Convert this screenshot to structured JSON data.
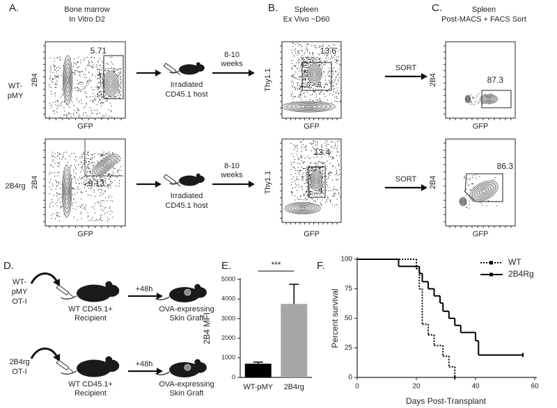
{
  "flow": {
    "columns": [
      {
        "label": "A.",
        "title": "Bone marrow",
        "subtitle": "In Vitro D2",
        "x_label": "GFP",
        "y_label": "2B4"
      },
      {
        "label": "B.",
        "title": "Spleen",
        "subtitle": "Ex Vivo ~D60",
        "x_label": "GFP",
        "y_label": "Thy1.1"
      },
      {
        "label": "C.",
        "title": "Spleen",
        "subtitle": "Post-MACS + FACS Sort",
        "x_label": "GFP",
        "y_label": "2B4"
      }
    ],
    "rows": [
      {
        "name": [
          "WT-",
          "pMY"
        ],
        "gates": [
          5.71,
          13.6,
          87.3
        ]
      },
      {
        "name": [
          "2B4rg"
        ],
        "gates": [
          9.13,
          13.4,
          86.3
        ]
      }
    ],
    "host": [
      "Irradiated",
      "CD45.1 host"
    ],
    "interval": [
      "8-10",
      "weeks"
    ],
    "sort": "SORT"
  },
  "panel_d": {
    "label": "D.",
    "rows": [
      [
        "WT-",
        "pMY",
        "OT-I"
      ],
      [
        "2B4rg",
        "OT-I"
      ]
    ],
    "recipient": [
      "WT CD45.1+",
      "Recipient"
    ],
    "delay": "+48h",
    "graft": [
      "OVA-expressing",
      "Skin Graft"
    ]
  },
  "chart_data": [
    {
      "type": "bar",
      "label": "E.",
      "y_label": "2B4 MFI",
      "categories": [
        "WT-pMY",
        "2B4rg"
      ],
      "values": [
        700,
        3750
      ],
      "errors": [
        80,
        1000
      ],
      "colors": [
        "#000000",
        "#a6a6a6"
      ],
      "ylim": [
        0,
        5000
      ],
      "yticks": [
        0,
        1000,
        2000,
        3000,
        4000,
        5000
      ],
      "annotation": "***"
    },
    {
      "type": "line",
      "label": "F.",
      "x_label": "Days Post-Transplant",
      "y_label": "Percent survival",
      "step": true,
      "legend": "upper-right",
      "xlim": [
        0,
        60
      ],
      "xticks": [
        0,
        20,
        40,
        60
      ],
      "ylim": [
        0,
        100
      ],
      "yticks": [
        0,
        25,
        50,
        75,
        100
      ],
      "series": [
        {
          "name": "WT",
          "color": "#000000",
          "line_style": "dotted",
          "x": [
            0,
            20,
            21,
            22,
            24,
            26,
            29,
            31,
            33
          ],
          "values": [
            100,
            92,
            75,
            45,
            36,
            27,
            18,
            9,
            0
          ]
        },
        {
          "name": "2B4Rg",
          "color": "#000000",
          "line_style": "solid",
          "x": [
            0,
            14,
            21,
            22,
            24,
            26,
            28,
            29,
            31,
            33,
            35,
            40,
            41,
            56
          ],
          "values": [
            100,
            94,
            88,
            81,
            75,
            69,
            63,
            56,
            50,
            44,
            38,
            31,
            19,
            19
          ]
        }
      ]
    }
  ]
}
